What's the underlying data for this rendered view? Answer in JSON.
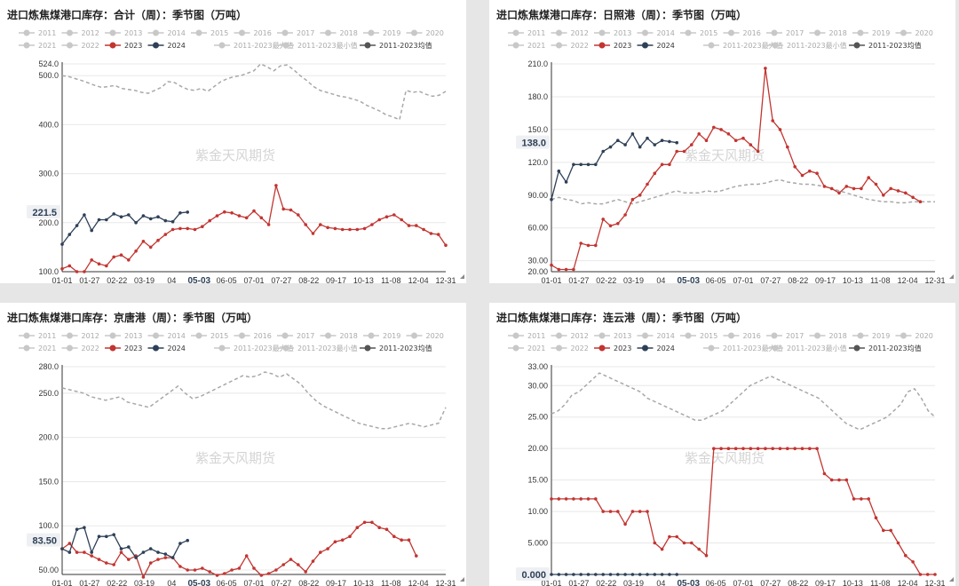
{
  "legend_items": [
    {
      "label": "2011",
      "color": "#c8c8c8",
      "active": false
    },
    {
      "label": "2012",
      "color": "#c8c8c8",
      "active": false
    },
    {
      "label": "2013",
      "color": "#c8c8c8",
      "active": false
    },
    {
      "label": "2014",
      "color": "#c8c8c8",
      "active": false
    },
    {
      "label": "2015",
      "color": "#c8c8c8",
      "active": false
    },
    {
      "label": "2016",
      "color": "#c8c8c8",
      "active": false
    },
    {
      "label": "2017",
      "color": "#c8c8c8",
      "active": false
    },
    {
      "label": "2018",
      "color": "#c8c8c8",
      "active": false
    },
    {
      "label": "2019",
      "color": "#c8c8c8",
      "active": false
    },
    {
      "label": "2020",
      "color": "#c8c8c8",
      "active": false
    },
    {
      "label": "2021",
      "color": "#c8c8c8",
      "active": false
    },
    {
      "label": "2022",
      "color": "#c8c8c8",
      "active": false
    },
    {
      "label": "2023",
      "color": "#c23531",
      "active": true
    },
    {
      "label": "2024",
      "color": "#2e4057",
      "active": true
    },
    {
      "label": "2011-2023最大值",
      "color": "#c8c8c8",
      "active": false
    },
    {
      "label": "2011-2023最小值",
      "color": "#c8c8c8",
      "active": false
    },
    {
      "label": "2011-2023均值",
      "color": "#555555",
      "active": true
    }
  ],
  "watermark": "紫金天风期货",
  "x_labels": [
    "01-01",
    "01-27",
    "02-22",
    "03-19",
    "04",
    "05-03",
    "06-05",
    "07-01",
    "07-27",
    "08-22",
    "09-17",
    "10-13",
    "11-08",
    "12-04",
    "12-31"
  ],
  "highlight_x": "05-03",
  "colors": {
    "y2023": "#c23531",
    "y2024": "#2e4057",
    "avg": "#a8a8a8"
  },
  "chart_data": [
    {
      "type": "line",
      "title": "进口炼焦煤港口库存：合计（周）：季节图（万吨）",
      "y_ticks": [
        "524.0",
        "500.0",
        "400.0",
        "300.0",
        "200.0",
        "100.0"
      ],
      "ylim": [
        100,
        524
      ],
      "last_value_label": "221.5",
      "series": [
        {
          "name": "2011-2023均值",
          "values": [
            500,
            498,
            494,
            490,
            485,
            480,
            476,
            478,
            480,
            474,
            472,
            470,
            466,
            464,
            470,
            476,
            488,
            486,
            478,
            472,
            470,
            474,
            468,
            478,
            488,
            494,
            498,
            500,
            505,
            510,
            524,
            518,
            510,
            520,
            522,
            512,
            500,
            490,
            478,
            470,
            466,
            462,
            458,
            456,
            452,
            448,
            440,
            434,
            428,
            420,
            416,
            410,
            470,
            466,
            468,
            462,
            458,
            460,
            468
          ]
        },
        {
          "name": "2023",
          "values": [
            106,
            112,
            100,
            100,
            124,
            116,
            112,
            130,
            134,
            124,
            142,
            162,
            150,
            164,
            176,
            186,
            188,
            188,
            186,
            192,
            204,
            214,
            222,
            220,
            214,
            210,
            224,
            210,
            196,
            276,
            228,
            226,
            216,
            196,
            178,
            196,
            190,
            188,
            186,
            186,
            186,
            188,
            196,
            206,
            212,
            216,
            206,
            194,
            194,
            186,
            178,
            176,
            154
          ]
        },
        {
          "name": "2024",
          "values": [
            156,
            176,
            194,
            216,
            184,
            206,
            206,
            218,
            212,
            216,
            200,
            214,
            208,
            212,
            204,
            202,
            220,
            221.5
          ]
        }
      ]
    },
    {
      "type": "line",
      "title": "进口炼焦煤港口库存：日照港（周）：季节图（万吨）",
      "y_ticks": [
        "210.0",
        "180.0",
        "150.0",
        "120.0",
        "90.00",
        "60.00",
        "30.00",
        "20.00"
      ],
      "ylim": [
        20,
        210
      ],
      "last_value_label": "138.0",
      "series": [
        {
          "name": "2011-2023均值",
          "values": [
            86,
            88,
            86,
            85,
            82,
            83,
            82,
            82,
            84,
            86,
            84,
            82,
            84,
            86,
            88,
            90,
            92,
            94,
            92,
            92,
            92,
            94,
            93,
            94,
            96,
            98,
            99,
            100,
            100,
            101,
            103,
            104,
            102,
            101,
            100,
            100,
            99,
            98,
            96,
            94,
            92,
            90,
            88,
            86,
            85,
            84,
            84,
            83,
            83,
            84,
            84,
            84,
            84
          ]
        },
        {
          "name": "2023",
          "values": [
            26,
            22,
            22,
            22,
            46,
            44,
            44,
            68,
            62,
            64,
            72,
            86,
            90,
            100,
            110,
            118,
            118,
            130,
            130,
            136,
            146,
            140,
            152,
            150,
            146,
            140,
            142,
            136,
            130,
            206,
            158,
            150,
            134,
            116,
            108,
            112,
            110,
            98,
            96,
            92,
            98,
            96,
            96,
            106,
            100,
            90,
            96,
            94,
            92,
            88,
            84
          ]
        },
        {
          "name": "2024",
          "values": [
            86,
            112,
            102,
            118,
            118,
            118,
            118,
            130,
            134,
            140,
            136,
            146,
            134,
            142,
            136,
            140,
            139,
            138
          ]
        }
      ]
    },
    {
      "type": "line",
      "title": "进口炼焦煤港口库存：京唐港（周）：季节图（万吨）",
      "y_ticks": [
        "280.0",
        "250.0",
        "200.0",
        "150.0",
        "100.0",
        "50.00"
      ],
      "ylim": [
        45,
        280
      ],
      "last_value_label": "83.50",
      "series": [
        {
          "name": "2011-2023均值",
          "values": [
            256,
            254,
            252,
            250,
            246,
            244,
            242,
            244,
            246,
            240,
            238,
            236,
            234,
            240,
            246,
            252,
            258,
            250,
            244,
            246,
            250,
            254,
            258,
            262,
            266,
            270,
            268,
            270,
            274,
            272,
            268,
            272,
            266,
            260,
            250,
            242,
            236,
            232,
            228,
            224,
            220,
            216,
            214,
            212,
            210,
            210,
            212,
            214,
            216,
            214,
            212,
            214,
            216,
            234
          ]
        },
        {
          "name": "2023",
          "values": [
            74,
            80,
            70,
            70,
            66,
            62,
            58,
            56,
            70,
            62,
            66,
            42,
            58,
            62,
            64,
            64,
            54,
            50,
            50,
            52,
            48,
            44,
            46,
            50,
            52,
            66,
            52,
            44,
            46,
            50,
            56,
            62,
            56,
            48,
            60,
            70,
            74,
            82,
            84,
            88,
            98,
            104,
            104,
            98,
            96,
            88,
            84,
            84,
            66
          ]
        },
        {
          "name": "2024",
          "values": [
            74,
            70,
            96,
            98,
            70,
            88,
            88,
            90,
            74,
            76,
            64,
            70,
            74,
            70,
            68,
            64,
            80,
            83.5
          ]
        }
      ]
    },
    {
      "type": "line",
      "title": "进口炼焦煤港口库存：连云港（周）：季节图（万吨）",
      "y_ticks": [
        "33.00",
        "30.00",
        "25.00",
        "20.00",
        "15.00",
        "10.00",
        "5.000",
        "0.000"
      ],
      "ylim": [
        0,
        33
      ],
      "last_value_label": "0.000",
      "series": [
        {
          "name": "2011-2023均值",
          "values": [
            25.5,
            26,
            27,
            28.5,
            29,
            30,
            31,
            32,
            31.5,
            31,
            30.5,
            30,
            29.5,
            29,
            28,
            27.5,
            27,
            26.5,
            26,
            25.5,
            25,
            24.5,
            24.5,
            25,
            25.5,
            26,
            27,
            28,
            29,
            30,
            30.5,
            31,
            31.5,
            31,
            30.5,
            30,
            29.5,
            29,
            28.5,
            28,
            27,
            26,
            25,
            24,
            23.5,
            23,
            23.5,
            24,
            24.5,
            25,
            26,
            27,
            29,
            29.5,
            28,
            26,
            25
          ]
        },
        {
          "name": "2023",
          "values": [
            12,
            12,
            12,
            12,
            12,
            12,
            12,
            10,
            10,
            10,
            8,
            10,
            10,
            10,
            5,
            4,
            6,
            6,
            5,
            5,
            4,
            3,
            20,
            20,
            20,
            20,
            20,
            20,
            20,
            20,
            20,
            20,
            20,
            20,
            20,
            20,
            20,
            16,
            15,
            15,
            15,
            12,
            12,
            12,
            9,
            7,
            7,
            5,
            3,
            2,
            0,
            0,
            0
          ]
        },
        {
          "name": "2024",
          "values": [
            0,
            0,
            0,
            0,
            0,
            0,
            0,
            0,
            0,
            0,
            0,
            0,
            0,
            0,
            0,
            0,
            0,
            0
          ]
        }
      ]
    }
  ]
}
